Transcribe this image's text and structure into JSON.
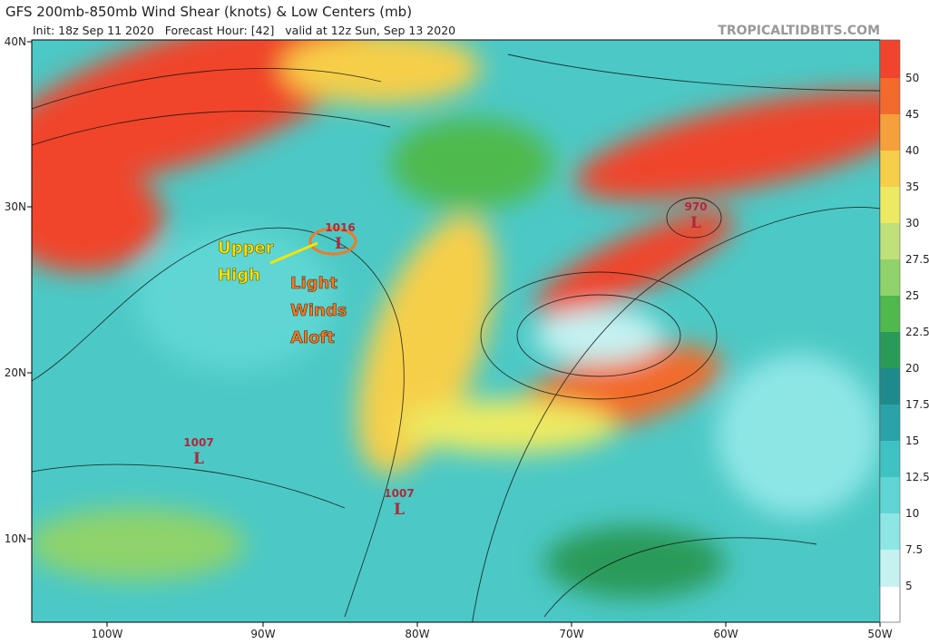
{
  "header": {
    "title": "GFS 200mb-850mb Wind Shear (knots) & Low Centers (mb)",
    "subtitle": "Init: 18z Sep 11 2020   Forecast Hour: [42]   valid at 12z Sun, Sep 13 2020",
    "brand": "TROPICALTIDBITS.COM"
  },
  "lat_labels": [
    "40N",
    "30N",
    "20N",
    "10N"
  ],
  "lon_labels": [
    "100W",
    "90W",
    "80W",
    "70W",
    "60W",
    "50W"
  ],
  "colorbar": {
    "levels": [
      {
        "label": "50",
        "color": "#f0442c"
      },
      {
        "label": "45",
        "color": "#f26a2c"
      },
      {
        "label": "40",
        "color": "#f5a03a"
      },
      {
        "label": "35",
        "color": "#f6cf4a"
      },
      {
        "label": "30",
        "color": "#ecea62"
      },
      {
        "label": "27.5",
        "color": "#bfe07a"
      },
      {
        "label": "25",
        "color": "#8fd36a"
      },
      {
        "label": "22.5",
        "color": "#4fb94d"
      },
      {
        "label": "20",
        "color": "#2a9a58"
      },
      {
        "label": "17.5",
        "color": "#1e8a8c"
      },
      {
        "label": "15",
        "color": "#2aa3a8"
      },
      {
        "label": "12.5",
        "color": "#3ec3c2"
      },
      {
        "label": "10",
        "color": "#5fd6d4"
      },
      {
        "label": "7.5",
        "color": "#8ee6e4"
      },
      {
        "label": "5",
        "color": "#c4f2f1"
      }
    ],
    "below_color": "#ffffff"
  },
  "lows": [
    {
      "pressure": "1016",
      "symbol": "L"
    },
    {
      "pressure": "1007",
      "symbol": "L"
    },
    {
      "pressure": "1007",
      "symbol": "L"
    },
    {
      "pressure": "970",
      "symbol": "L"
    }
  ],
  "annotations": {
    "upper_high": [
      "Upper",
      "High"
    ],
    "light_winds": [
      "Light",
      "Winds",
      "Aloft"
    ]
  }
}
